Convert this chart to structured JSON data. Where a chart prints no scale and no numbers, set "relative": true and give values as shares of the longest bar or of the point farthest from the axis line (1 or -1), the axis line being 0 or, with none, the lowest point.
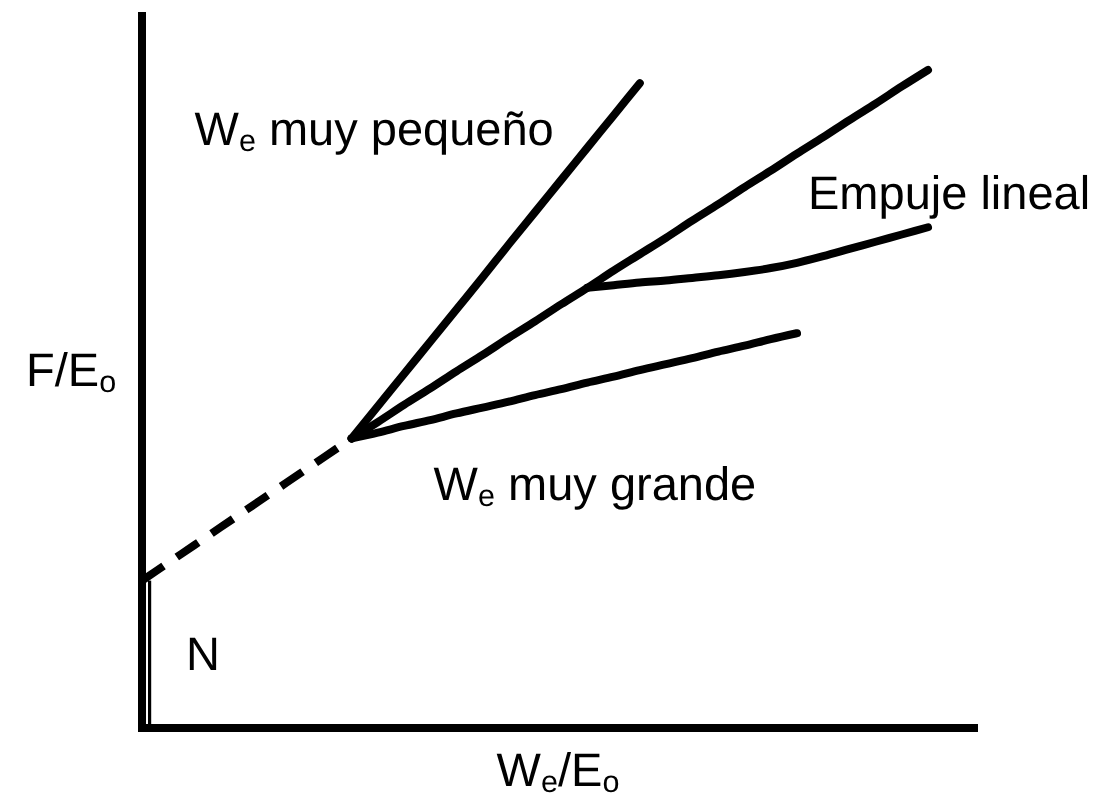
{
  "chart_data": {
    "type": "line",
    "relative": true,
    "xlabel": "W$_{e}$/E$_{o}$",
    "ylabel": "F/E$_{o}$",
    "line_style": "solid",
    "categories": [
      null,
      null,
      null,
      null,
      null,
      null,
      null,
      null,
      null,
      null,
      null,
      null,
      null,
      null,
      null,
      null,
      null,
      null,
      null,
      null,
      null,
      null,
      null,
      null,
      null,
      null,
      null,
      null,
      null,
      null,
      null
    ],
    "annotations": [
      "N"
    ],
    "series": [
      {
        "color": "#000000",
        "line_style": "dashed",
        "values": [
          0.224,
          0.251,
          0.278,
          0.305,
          0.332,
          0.359,
          0.386,
          0.413,
          0.44,
          null,
          null,
          null,
          null,
          null,
          null,
          null,
          null,
          null,
          null,
          null,
          null,
          null,
          null,
          null,
          null,
          null,
          null,
          null,
          null,
          null,
          null
        ]
      },
      {
        "name": "W$_{e}$ muy pequeño",
        "color": "#000000",
        "values": [
          null,
          null,
          null,
          null,
          null,
          null,
          null,
          null,
          0.44,
          0.489,
          0.538,
          0.587,
          0.636,
          0.685,
          0.735,
          0.784,
          0.833,
          0.882,
          0.931,
          0.98,
          null,
          null,
          null,
          null,
          null,
          null,
          null,
          null,
          null,
          null,
          null
        ]
      },
      {
        "color": "#000000",
        "values": [
          null,
          null,
          null,
          null,
          null,
          null,
          null,
          null,
          0.44,
          0.465,
          0.491,
          0.516,
          0.542,
          0.567,
          0.593,
          0.618,
          0.644,
          0.669,
          0.695,
          0.72,
          0.745,
          0.771,
          0.796,
          0.822,
          0.847,
          0.873,
          0.898,
          0.924,
          0.949,
          0.975,
          1
        ]
      },
      {
        "name": "Empuje lineal",
        "color": "#000000",
        "values": [
          null,
          null,
          null,
          null,
          null,
          null,
          null,
          null,
          null,
          null,
          null,
          null,
          null,
          null,
          null,
          null,
          null,
          0.669,
          0.673,
          0.677,
          0.68,
          0.684,
          0.688,
          0.693,
          0.699,
          0.707,
          0.717,
          0.728,
          0.739,
          0.75,
          0.761
        ]
      },
      {
        "name": "W$_{e}$ muy grande",
        "color": "#000000",
        "values": [
          null,
          null,
          null,
          null,
          null,
          null,
          null,
          null,
          0.44,
          0.449,
          0.459,
          0.468,
          0.478,
          0.487,
          0.496,
          0.506,
          0.515,
          0.525,
          0.534,
          0.544,
          0.553,
          0.562,
          0.572,
          0.581,
          0.591,
          0.6,
          null,
          null,
          null,
          null,
          null
        ]
      }
    ]
  }
}
